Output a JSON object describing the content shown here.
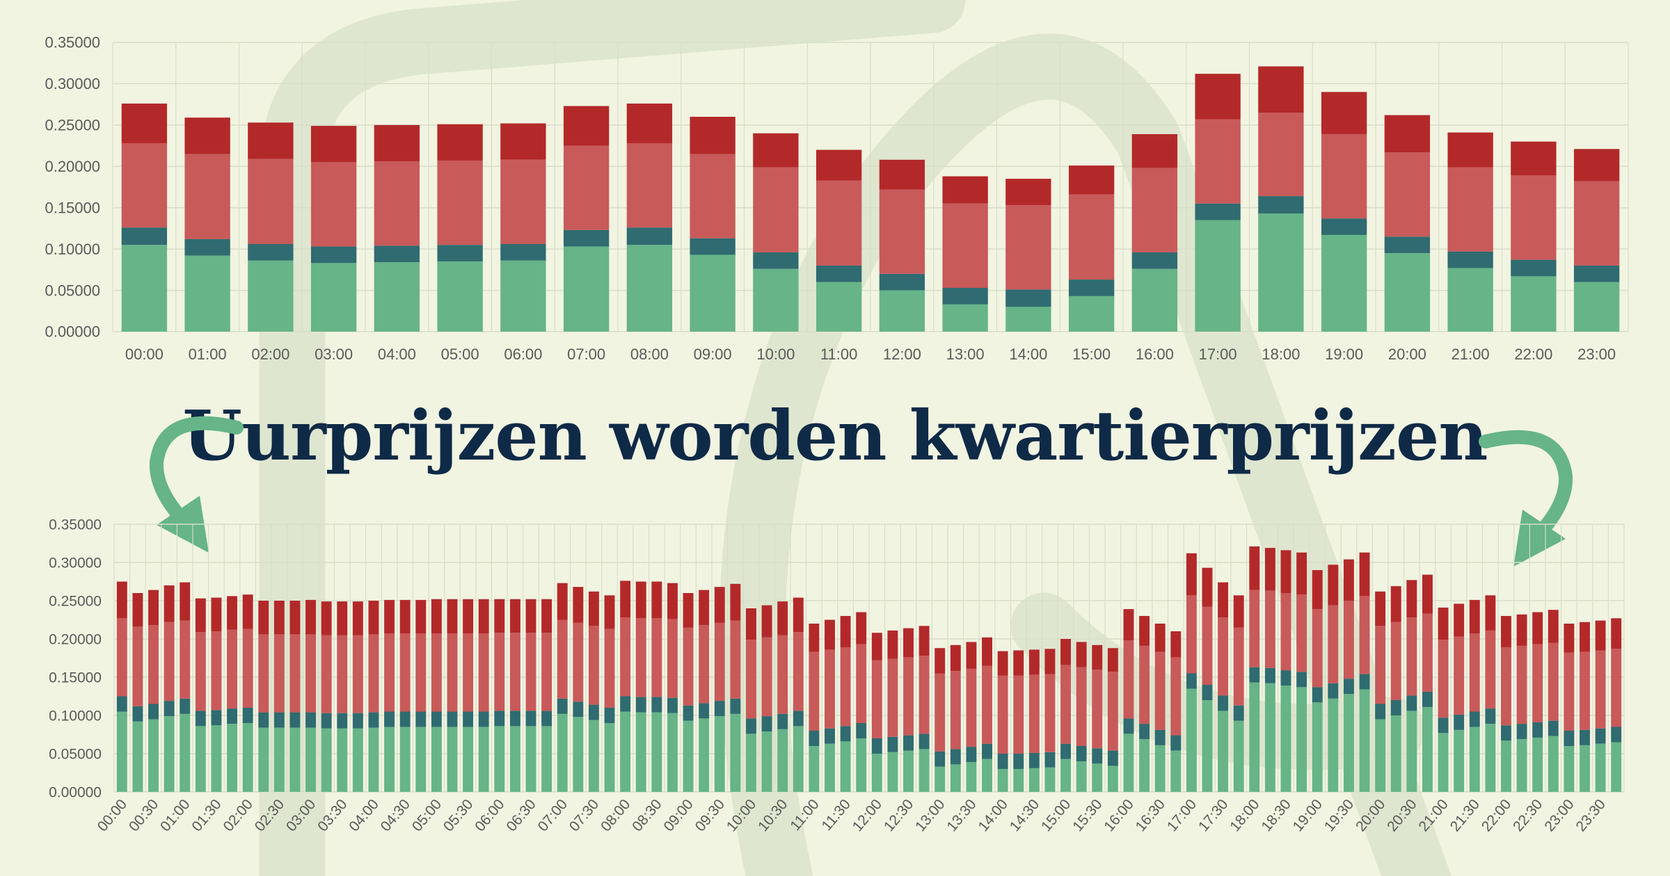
{
  "headline": "Uurprijzen worden kwartierprijzen",
  "colors": {
    "background": "#f1f4e1",
    "green": "#66b488",
    "teal": "#2f6b70",
    "light_red": "#c85a5a",
    "dark_red": "#b3292a",
    "grid": "#d8ddc8",
    "headline": "#0f2a47",
    "arrow": "#66b488"
  },
  "chart_data": [
    {
      "type": "bar",
      "stacked": true,
      "title": "",
      "xlabel": "",
      "ylabel": "",
      "ylim": [
        0,
        0.35
      ],
      "yticks": [
        "0.00000",
        "0.05000",
        "0.10000",
        "0.15000",
        "0.20000",
        "0.25000",
        "0.30000",
        "0.35000"
      ],
      "grid": true,
      "categories": [
        "00:00",
        "01:00",
        "02:00",
        "03:00",
        "04:00",
        "05:00",
        "06:00",
        "07:00",
        "08:00",
        "09:00",
        "10:00",
        "11:00",
        "12:00",
        "13:00",
        "14:00",
        "15:00",
        "16:00",
        "17:00",
        "18:00",
        "19:00",
        "20:00",
        "21:00",
        "22:00",
        "23:00"
      ],
      "series": [
        {
          "color": "#66b488",
          "values": [
            0.105,
            0.092,
            0.086,
            0.083,
            0.084,
            0.085,
            0.086,
            0.103,
            0.105,
            0.093,
            0.076,
            0.06,
            0.05,
            0.033,
            0.03,
            0.043,
            0.076,
            0.135,
            0.143,
            0.117,
            0.095,
            0.077,
            0.067,
            0.06
          ]
        },
        {
          "color": "#2f6b70",
          "values": [
            0.021,
            0.02,
            0.02,
            0.02,
            0.02,
            0.02,
            0.02,
            0.02,
            0.021,
            0.02,
            0.02,
            0.02,
            0.02,
            0.02,
            0.021,
            0.02,
            0.02,
            0.02,
            0.021,
            0.02,
            0.02,
            0.02,
            0.02,
            0.02
          ]
        },
        {
          "color": "#c85a5a",
          "values": [
            0.102,
            0.103,
            0.103,
            0.102,
            0.102,
            0.102,
            0.102,
            0.102,
            0.102,
            0.102,
            0.103,
            0.103,
            0.102,
            0.102,
            0.102,
            0.103,
            0.102,
            0.102,
            0.101,
            0.102,
            0.102,
            0.102,
            0.102,
            0.102
          ]
        },
        {
          "color": "#b3292a",
          "values": [
            0.048,
            0.044,
            0.044,
            0.044,
            0.044,
            0.044,
            0.044,
            0.048,
            0.048,
            0.045,
            0.041,
            0.037,
            0.036,
            0.033,
            0.032,
            0.035,
            0.041,
            0.055,
            0.056,
            0.051,
            0.045,
            0.042,
            0.041,
            0.039
          ]
        }
      ]
    },
    {
      "type": "bar",
      "stacked": true,
      "title": "",
      "xlabel": "",
      "ylabel": "",
      "ylim": [
        0,
        0.35
      ],
      "yticks": [
        "0.00000",
        "0.05000",
        "0.10000",
        "0.15000",
        "0.20000",
        "0.25000",
        "0.30000",
        "0.35000"
      ],
      "grid": true,
      "categories": [
        "00:00",
        "00:15",
        "00:30",
        "00:45",
        "01:00",
        "01:15",
        "01:30",
        "01:45",
        "02:00",
        "02:15",
        "02:30",
        "02:45",
        "03:00",
        "03:15",
        "03:30",
        "03:45",
        "04:00",
        "04:15",
        "04:30",
        "04:45",
        "05:00",
        "05:15",
        "05:30",
        "05:45",
        "06:00",
        "06:15",
        "06:30",
        "06:45",
        "07:00",
        "07:15",
        "07:30",
        "07:45",
        "08:00",
        "08:15",
        "08:30",
        "08:45",
        "09:00",
        "09:15",
        "09:30",
        "09:45",
        "10:00",
        "10:15",
        "10:30",
        "10:45",
        "11:00",
        "11:15",
        "11:30",
        "11:45",
        "12:00",
        "12:15",
        "12:30",
        "12:45",
        "13:00",
        "13:15",
        "13:30",
        "13:45",
        "14:00",
        "14:15",
        "14:30",
        "14:45",
        "15:00",
        "15:15",
        "15:30",
        "15:45",
        "16:00",
        "16:15",
        "16:30",
        "16:45",
        "17:00",
        "17:15",
        "17:30",
        "17:45",
        "18:00",
        "18:15",
        "18:30",
        "18:45",
        "19:00",
        "19:15",
        "19:30",
        "19:45",
        "20:00",
        "20:15",
        "20:30",
        "20:45",
        "21:00",
        "21:15",
        "21:30",
        "21:45",
        "22:00",
        "22:15",
        "22:30",
        "22:45",
        "23:00",
        "23:15",
        "23:30",
        "23:45"
      ],
      "totals": [
        0.275,
        0.26,
        0.264,
        0.27,
        0.272,
        0.253,
        0.254,
        0.256,
        0.258,
        0.25,
        0.25,
        0.25,
        0.251,
        0.249,
        0.249,
        0.249,
        0.25,
        0.251,
        0.251,
        0.251,
        0.252,
        0.252,
        0.252,
        0.252,
        0.252,
        0.252,
        0.252,
        0.252,
        0.273,
        0.268,
        0.262,
        0.257,
        0.276,
        0.275,
        0.275,
        0.273,
        0.26,
        0.264,
        0.268,
        0.272,
        0.24,
        0.244,
        0.249,
        0.254,
        0.22,
        0.225,
        0.23,
        0.235,
        0.208,
        0.211,
        0.214,
        0.217,
        0.188,
        0.192,
        0.196,
        0.202,
        0.184,
        0.185,
        0.186,
        0.187,
        0.2,
        0.196,
        0.192,
        0.188,
        0.239,
        0.23,
        0.22,
        0.21,
        0.312,
        0.293,
        0.274,
        0.257,
        0.321,
        0.319,
        0.316,
        0.313,
        0.29,
        0.297,
        0.304,
        0.313,
        0.262,
        0.269,
        0.277,
        0.284,
        0.241,
        0.246,
        0.251,
        0.257,
        0.23,
        0.232,
        0.235,
        0.238,
        0.22,
        0.222,
        0.224,
        0.227
      ],
      "series": [
        {
          "color": "#66b488",
          "values": [
            0.105,
            0.092,
            0.095,
            0.099,
            0.102,
            0.086,
            0.087,
            0.089,
            0.09,
            0.084,
            0.084,
            0.084,
            0.084,
            0.083,
            0.083,
            0.083,
            0.084,
            0.085,
            0.085,
            0.085,
            0.085,
            0.085,
            0.085,
            0.085,
            0.086,
            0.086,
            0.086,
            0.086,
            0.102,
            0.098,
            0.094,
            0.09,
            0.105,
            0.104,
            0.104,
            0.103,
            0.093,
            0.096,
            0.099,
            0.102,
            0.076,
            0.079,
            0.082,
            0.086,
            0.06,
            0.063,
            0.066,
            0.07,
            0.05,
            0.052,
            0.054,
            0.056,
            0.033,
            0.036,
            0.039,
            0.043,
            0.03,
            0.03,
            0.031,
            0.032,
            0.043,
            0.04,
            0.037,
            0.034,
            0.076,
            0.069,
            0.061,
            0.054,
            0.135,
            0.12,
            0.106,
            0.093,
            0.143,
            0.142,
            0.139,
            0.137,
            0.117,
            0.122,
            0.128,
            0.134,
            0.095,
            0.1,
            0.106,
            0.111,
            0.077,
            0.081,
            0.085,
            0.089,
            0.067,
            0.069,
            0.071,
            0.073,
            0.06,
            0.061,
            0.063,
            0.065
          ]
        },
        {
          "color": "#2f6b70",
          "values": [
            0.02,
            0.02,
            0.02,
            0.02,
            0.02,
            0.02,
            0.02,
            0.02,
            0.02,
            0.02,
            0.02,
            0.02,
            0.02,
            0.02,
            0.02,
            0.02,
            0.02,
            0.02,
            0.02,
            0.02,
            0.02,
            0.02,
            0.02,
            0.02,
            0.02,
            0.02,
            0.02,
            0.02,
            0.02,
            0.02,
            0.02,
            0.02,
            0.02,
            0.02,
            0.02,
            0.02,
            0.02,
            0.02,
            0.02,
            0.02,
            0.02,
            0.02,
            0.02,
            0.02,
            0.02,
            0.02,
            0.02,
            0.02,
            0.02,
            0.02,
            0.02,
            0.02,
            0.02,
            0.02,
            0.02,
            0.02,
            0.02,
            0.02,
            0.02,
            0.02,
            0.02,
            0.02,
            0.02,
            0.02,
            0.02,
            0.02,
            0.02,
            0.02,
            0.02,
            0.02,
            0.02,
            0.02,
            0.02,
            0.02,
            0.02,
            0.02,
            0.02,
            0.02,
            0.02,
            0.02,
            0.02,
            0.02,
            0.02,
            0.02,
            0.02,
            0.02,
            0.02,
            0.02,
            0.02,
            0.02,
            0.02,
            0.02,
            0.02,
            0.02,
            0.02,
            0.02
          ]
        },
        {
          "color": "#c85a5a",
          "values": [
            0.102,
            0.104,
            0.103,
            0.103,
            0.102,
            0.103,
            0.103,
            0.103,
            0.103,
            0.102,
            0.102,
            0.102,
            0.102,
            0.102,
            0.102,
            0.102,
            0.102,
            0.102,
            0.102,
            0.102,
            0.102,
            0.102,
            0.102,
            0.102,
            0.102,
            0.102,
            0.102,
            0.102,
            0.103,
            0.103,
            0.103,
            0.103,
            0.103,
            0.103,
            0.103,
            0.103,
            0.102,
            0.102,
            0.102,
            0.102,
            0.103,
            0.103,
            0.103,
            0.103,
            0.103,
            0.103,
            0.103,
            0.103,
            0.102,
            0.102,
            0.102,
            0.102,
            0.102,
            0.102,
            0.102,
            0.102,
            0.102,
            0.102,
            0.102,
            0.102,
            0.103,
            0.103,
            0.103,
            0.103,
            0.102,
            0.102,
            0.102,
            0.102,
            0.102,
            0.102,
            0.102,
            0.102,
            0.101,
            0.101,
            0.101,
            0.101,
            0.102,
            0.102,
            0.102,
            0.102,
            0.102,
            0.102,
            0.102,
            0.102,
            0.102,
            0.102,
            0.102,
            0.102,
            0.102,
            0.102,
            0.102,
            0.102,
            0.102,
            0.102,
            0.102,
            0.102
          ]
        },
        {
          "color": "#b3292a",
          "values": [
            0.048,
            0.044,
            0.046,
            0.048,
            0.05,
            0.044,
            0.044,
            0.044,
            0.045,
            0.044,
            0.044,
            0.044,
            0.045,
            0.044,
            0.044,
            0.044,
            0.044,
            0.044,
            0.044,
            0.044,
            0.045,
            0.045,
            0.045,
            0.045,
            0.044,
            0.044,
            0.044,
            0.044,
            0.048,
            0.047,
            0.045,
            0.044,
            0.048,
            0.048,
            0.048,
            0.047,
            0.045,
            0.046,
            0.047,
            0.048,
            0.041,
            0.042,
            0.044,
            0.045,
            0.037,
            0.039,
            0.041,
            0.042,
            0.036,
            0.037,
            0.038,
            0.039,
            0.033,
            0.034,
            0.035,
            0.037,
            0.032,
            0.033,
            0.033,
            0.033,
            0.034,
            0.033,
            0.032,
            0.031,
            0.041,
            0.039,
            0.037,
            0.034,
            0.055,
            0.051,
            0.046,
            0.042,
            0.057,
            0.056,
            0.056,
            0.055,
            0.051,
            0.053,
            0.054,
            0.057,
            0.045,
            0.047,
            0.049,
            0.051,
            0.042,
            0.043,
            0.044,
            0.046,
            0.041,
            0.041,
            0.042,
            0.043,
            0.038,
            0.039,
            0.039,
            0.04
          ]
        }
      ],
      "label_every": 2
    }
  ]
}
